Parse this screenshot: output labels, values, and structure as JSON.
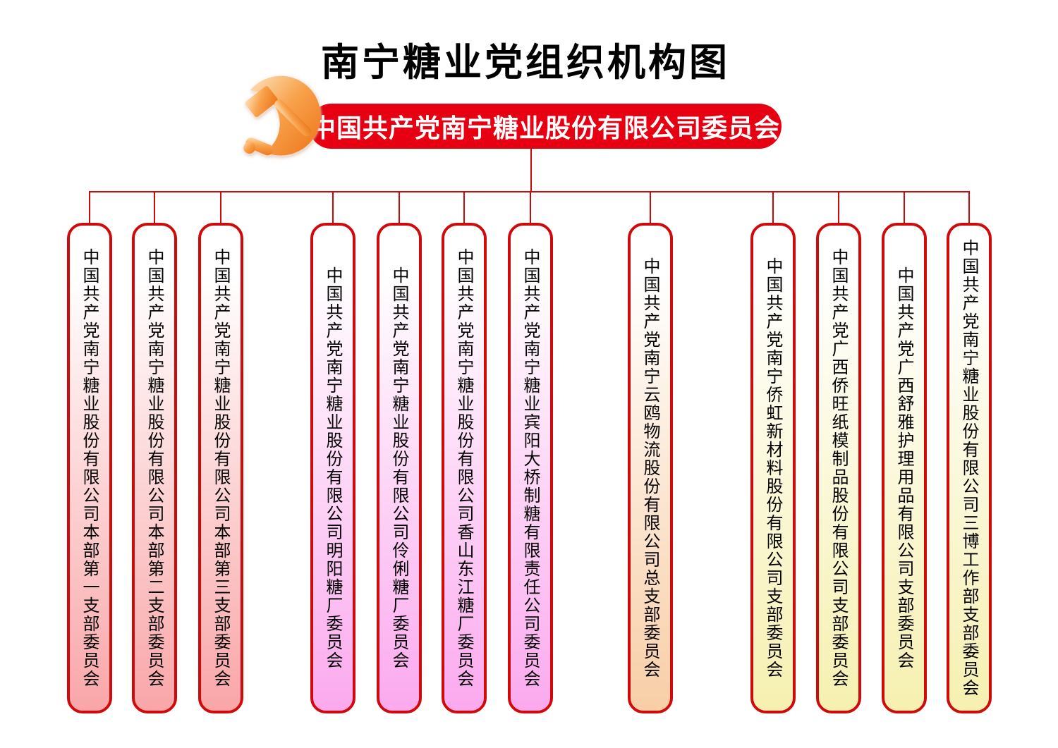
{
  "title": "南宁糖业党组织机构图",
  "root": {
    "label": "中国共产党南宁糖业股份有限公司委员会",
    "icon": "party-emblem-icon"
  },
  "branches": [
    {
      "label": "中国共产党南宁糖业股份有限公司本部第一支部委员会",
      "color": "pink"
    },
    {
      "label": "中国共产党南宁糖业股份有限公司本部第二支部委员会",
      "color": "pink"
    },
    {
      "label": "中国共产党南宁糖业股份有限公司本部第三支部委员会",
      "color": "pink"
    },
    {
      "label": "中国共产党南宁糖业股份有限公司明阳糖厂委员会",
      "color": "magenta"
    },
    {
      "label": "中国共产党南宁糖业股份有限公司伶俐糖厂委员会",
      "color": "magenta"
    },
    {
      "label": "中国共产党南宁糖业股份有限公司香山东江糖厂委员会",
      "color": "magenta"
    },
    {
      "label": "中国共产党南宁糖业宾阳大桥制糖有限责任公司委员会",
      "color": "magenta"
    },
    {
      "label": "中国共产党南宁云鸥物流股份有限公司总支部委员会",
      "color": "orange"
    },
    {
      "label": "中国共产党南宁侨虹新材料股份有限公司支部委员会",
      "color": "yellow"
    },
    {
      "label": "中国共产党广西侨旺纸模制品股份有限公司支部委员会",
      "color": "yellow"
    },
    {
      "label": "中国共产党广西舒雅护理用品有限公司支部委员会",
      "color": "yellow"
    },
    {
      "label": "中国共产党南宁糖业股份有限公司三博工作部支部委员会",
      "color": "yellow"
    }
  ],
  "colors": {
    "banner_red": "#e60012",
    "box_border_red": "#cf0a0a",
    "connector_red": "#cc0a0a",
    "banner_text": "#ffffff",
    "title_text": "#000000",
    "box_text": "#000000",
    "emblem_orange_light": "#fde3bd",
    "emblem_orange_mid": "#f8a24c",
    "emblem_orange_dark": "#ec7418",
    "group_tints": {
      "pink": "#f9a6a8",
      "magenta": "#fba9ee",
      "orange": "#f8cea6",
      "yellow": "#f6f0b0"
    }
  }
}
